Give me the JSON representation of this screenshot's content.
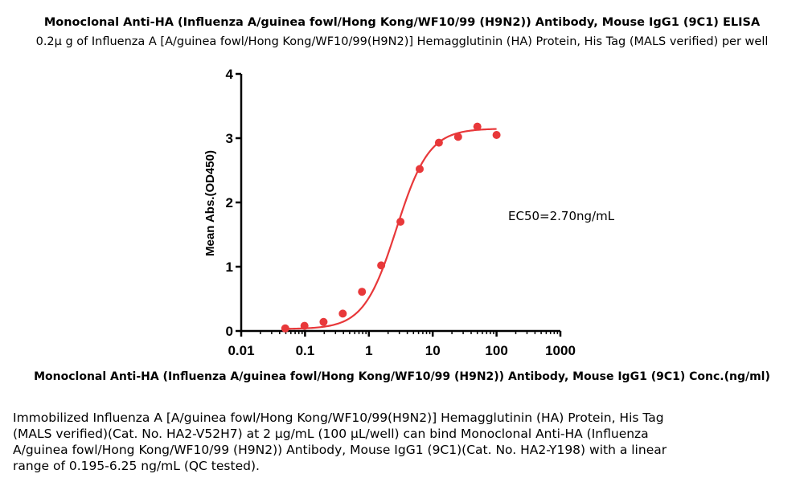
{
  "header": {
    "title": "Monoclonal Anti-HA (Influenza A/guinea fowl/Hong Kong/WF10/99 (H9N2)) Antibody, Mouse IgG1 (9C1) ELISA",
    "subtitle": "0.2μ g of Influenza A [A/guinea fowl/Hong Kong/WF10/99(H9N2)] Hemagglutinin (HA) Protein, His Tag (MALS verified) per well"
  },
  "chart_data": {
    "type": "scatter",
    "title": "Monoclonal Anti-HA (Influenza A/guinea fowl/Hong Kong/WF10/99 (H9N2)) Antibody, Mouse IgG1 (9C1) ELISA",
    "subtitle": "0.2μ g of Influenza A [A/guinea fowl/Hong Kong/WF10/99(H9N2)] Hemagglutinin (HA) Protein, His Tag (MALS verified) per well",
    "xlabel": "Monoclonal Anti-HA (Influenza A/guinea fowl/Hong Kong/WF10/99 (H9N2)) Antibody, Mouse IgG1 (9C1) Conc.(ng/ml)",
    "ylabel": "Mean Abs.(OD450)",
    "x_scale": "log",
    "xlim": [
      0.01,
      1000
    ],
    "ylim": [
      0,
      4
    ],
    "x_ticks": [
      "0.01",
      "0.1",
      "1",
      "10",
      "100",
      "1000"
    ],
    "y_ticks": [
      "0",
      "1",
      "2",
      "3",
      "4"
    ],
    "grid": false,
    "series": [
      {
        "points": [
          {
            "x": 0.049,
            "y": 0.04
          },
          {
            "x": 0.098,
            "y": 0.08
          },
          {
            "x": 0.195,
            "y": 0.14
          },
          {
            "x": 0.39,
            "y": 0.27
          },
          {
            "x": 0.78,
            "y": 0.61
          },
          {
            "x": 1.56,
            "y": 1.02
          },
          {
            "x": 3.125,
            "y": 1.7
          },
          {
            "x": 6.25,
            "y": 2.52
          },
          {
            "x": 12.5,
            "y": 2.93
          },
          {
            "x": 25,
            "y": 3.02
          },
          {
            "x": 50,
            "y": 3.18
          },
          {
            "x": 100,
            "y": 3.05
          }
        ],
        "fit": {
          "bottom": 0.03,
          "top": 3.15,
          "ec50": 2.7,
          "hill": 1.7
        }
      }
    ],
    "annotation": "EC50=2.70ng/mL",
    "color": "#e8383a"
  },
  "caption": [
    "Immobilized Influenza A [A/guinea fowl/Hong Kong/WF10/99(H9N2)] Hemagglutinin (HA) Protein, His Tag",
    "(MALS verified)(Cat. No. HA2-V52H7) at 2 μg/mL (100 μL/well) can bind Monoclonal Anti-HA (Influenza",
    "A/guinea fowl/Hong Kong/WF10/99 (H9N2)) Antibody, Mouse IgG1 (9C1)(Cat. No. HA2-Y198) with a linear",
    "range of 0.195-6.25 ng/mL (QC tested)."
  ]
}
